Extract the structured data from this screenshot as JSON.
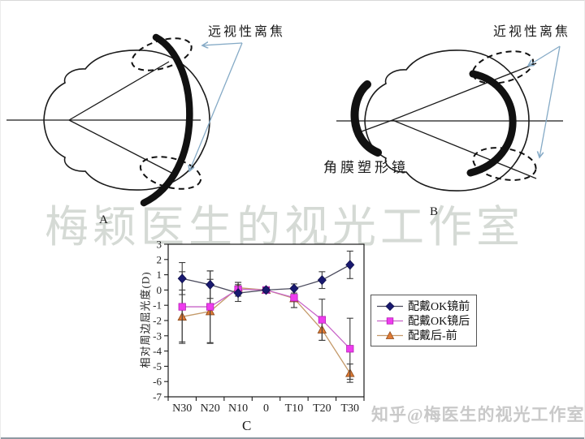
{
  "watermarks": {
    "center": "梅颖医生的视光工作室",
    "bottom": "知乎@梅医生的视光工作室"
  },
  "diagram_a": {
    "panel_label": "A",
    "defocus_label": "远视性离焦"
  },
  "diagram_b": {
    "panel_label": "B",
    "defocus_label": "近视性离焦",
    "lens_label": "角膜塑形镜"
  },
  "colors": {
    "pointer_arrow": "#85aac6",
    "watermark_gray": "#d5dad5",
    "ink": "#1a1a1a",
    "error_bar": "#3c3c3c"
  },
  "chart_data": {
    "type": "line",
    "panel_label": "C",
    "ylabel": "相对周边屈光度(D)",
    "categories": [
      "N30",
      "N20",
      "N10",
      "0",
      "T10",
      "T20",
      "T30"
    ],
    "ylim": [
      -7,
      3
    ],
    "ytick_step": 1,
    "grid": false,
    "legend_position": "right",
    "series": [
      {
        "name": "配戴OK镜前",
        "marker": "diamond",
        "color": "#191970",
        "edge_color": "#10104a",
        "line_color": "#4c4c5e",
        "values": [
          0.75,
          0.35,
          -0.2,
          0,
          0.1,
          0.65,
          1.65
        ],
        "errors": [
          1.05,
          0.9,
          0.55,
          0.15,
          0.3,
          0.55,
          0.9
        ]
      },
      {
        "name": "配戴OK镜后",
        "marker": "square",
        "color": "#ee3cee",
        "edge_color": "#b31fb3",
        "line_color": "#c864c8",
        "values": [
          -1.1,
          -1.1,
          0.05,
          0,
          -0.5,
          -1.95,
          -3.85
        ],
        "errors": [
          2.3,
          2.35,
          0.45,
          0.15,
          0.65,
          1.35,
          2.0
        ]
      },
      {
        "name": "配戴后-前",
        "marker": "triangle",
        "color": "#e07b35",
        "edge_color": "#8d4a1a",
        "line_color": "#c49a6a",
        "values": [
          -1.75,
          -1.4,
          0.15,
          0,
          -0.55,
          -2.6,
          -5.45
        ],
        "errors": [
          1.75,
          2.1,
          0.35,
          0.15,
          0.6,
          0.7,
          0.6
        ]
      }
    ]
  }
}
